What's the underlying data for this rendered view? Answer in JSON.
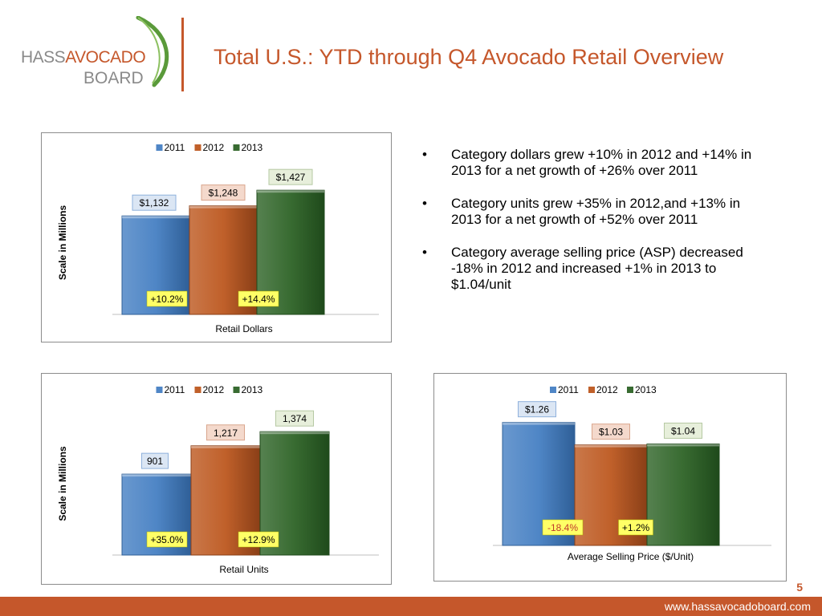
{
  "logo": {
    "text_line1_a": "HASS",
    "text_line1_b": "AVOCADO",
    "text_line2": "BOARD"
  },
  "title": "Total U.S.: YTD through Q4 Avocado Retail Overview",
  "bullets": [
    "Category dollars grew +10% in 2012 and +14% in 2013 for a net growth of +26% over 2011",
    "Category units grew +35% in 2012,and +13% in 2013 for a net growth of +52% over 2011",
    "Category average selling price (ASP) decreased -18% in 2012 and increased +1% in 2013 to $1.04/unit"
  ],
  "page_number": "5",
  "footer_url": "www.hassavocadoboard.com",
  "colors": {
    "brand": "#c5572b",
    "s2011": "#4f86c6",
    "s2012": "#c0602a",
    "s2013": "#386b31"
  },
  "chart_data": [
    {
      "type": "bar",
      "categories": [
        "2011",
        "2012",
        "2013"
      ],
      "values": [
        1132,
        1248,
        1427
      ],
      "value_labels": [
        "$1,132",
        "$1,248",
        "$1,427"
      ],
      "growth_labels": [
        "+10.2%",
        "+14.4%"
      ],
      "legend": [
        "2011",
        "2012",
        "2013"
      ],
      "legend_position": "top",
      "xlabel": "Retail Dollars",
      "ylabel": "Scale in Millions",
      "ylim": [
        0,
        1650
      ]
    },
    {
      "type": "bar",
      "categories": [
        "2011",
        "2012",
        "2013"
      ],
      "values": [
        901,
        1217,
        1374
      ],
      "value_labels": [
        "901",
        "1,217",
        "1,374"
      ],
      "growth_labels": [
        "+35.0%",
        "+12.9%"
      ],
      "legend": [
        "2011",
        "2012",
        "2013"
      ],
      "legend_position": "top",
      "xlabel": "Retail Units",
      "ylabel": "Scale in Millions",
      "ylim": [
        0,
        1590
      ]
    },
    {
      "type": "bar",
      "categories": [
        "2011",
        "2012",
        "2013"
      ],
      "values": [
        1.26,
        1.03,
        1.04
      ],
      "value_labels": [
        "$1.26",
        "$1.03",
        "$1.04"
      ],
      "growth_labels": [
        "-18.4%",
        "+1.2%"
      ],
      "legend": [
        "2011",
        "2012",
        "2013"
      ],
      "legend_position": "top",
      "xlabel": "Average Selling Price ($/Unit)",
      "ylabel": "",
      "ylim": [
        0,
        1.43
      ]
    }
  ]
}
